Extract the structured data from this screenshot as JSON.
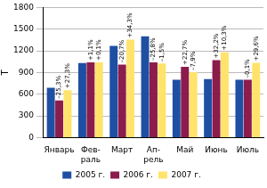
{
  "chart_data": {
    "type": "bar",
    "y_label": "Т",
    "categories": [
      "Январь",
      "Фев-раль",
      "Март",
      "Ап-рель",
      "Май",
      "Июнь",
      "Июль"
    ],
    "series": [
      {
        "name": "2005 г.",
        "color": "#1f4fa3",
        "values": [
          690,
          1030,
          1270,
          1400,
          800,
          810,
          800
        ]
      },
      {
        "name": "2006 г.",
        "color": "#8c1c4c",
        "values": [
          515,
          1040,
          1010,
          1040,
          980,
          1070,
          800
        ]
      },
      {
        "name": "2007 г.",
        "color": "#ffe36b",
        "values": [
          656,
          1041,
          1355,
          1025,
          905,
          1180,
          1035
        ]
      }
    ],
    "annotations": [
      {
        "category": "Январь",
        "series": "2006 г.",
        "text": "–25,3%"
      },
      {
        "category": "Январь",
        "series": "2007 г.",
        "text": "+27,3%"
      },
      {
        "category": "Фев-раль",
        "series": "2006 г.",
        "text": "+1,1%"
      },
      {
        "category": "Фев-раль",
        "series": "2007 г.",
        "text": "+0,1%"
      },
      {
        "category": "Март",
        "series": "2006 г.",
        "text": "–20,7%"
      },
      {
        "category": "Март",
        "series": "2007 г.",
        "text": "+34,3%"
      },
      {
        "category": "Ап-рель",
        "series": "2006 г.",
        "text": "–25,8%"
      },
      {
        "category": "Ап-рель",
        "series": "2007 г.",
        "text": "–1,5%"
      },
      {
        "category": "Май",
        "series": "2006 г.",
        "text": "+22,7%"
      },
      {
        "category": "Май",
        "series": "2007 г.",
        "text": "–7,9%"
      },
      {
        "category": "Июнь",
        "series": "2006 г.",
        "text": "+32,2%"
      },
      {
        "category": "Июнь",
        "series": "2007 г.",
        "text": "+10,3%"
      },
      {
        "category": "Июль",
        "series": "2006 г.",
        "text": "–0,1%"
      },
      {
        "category": "Июль",
        "series": "2007 г.",
        "text": "+29,6%"
      }
    ],
    "ylim": [
      0,
      1800
    ],
    "yticks": [
      0,
      300,
      600,
      900,
      1200,
      1500,
      1800
    ],
    "grid": true,
    "legend": "bottom"
  }
}
